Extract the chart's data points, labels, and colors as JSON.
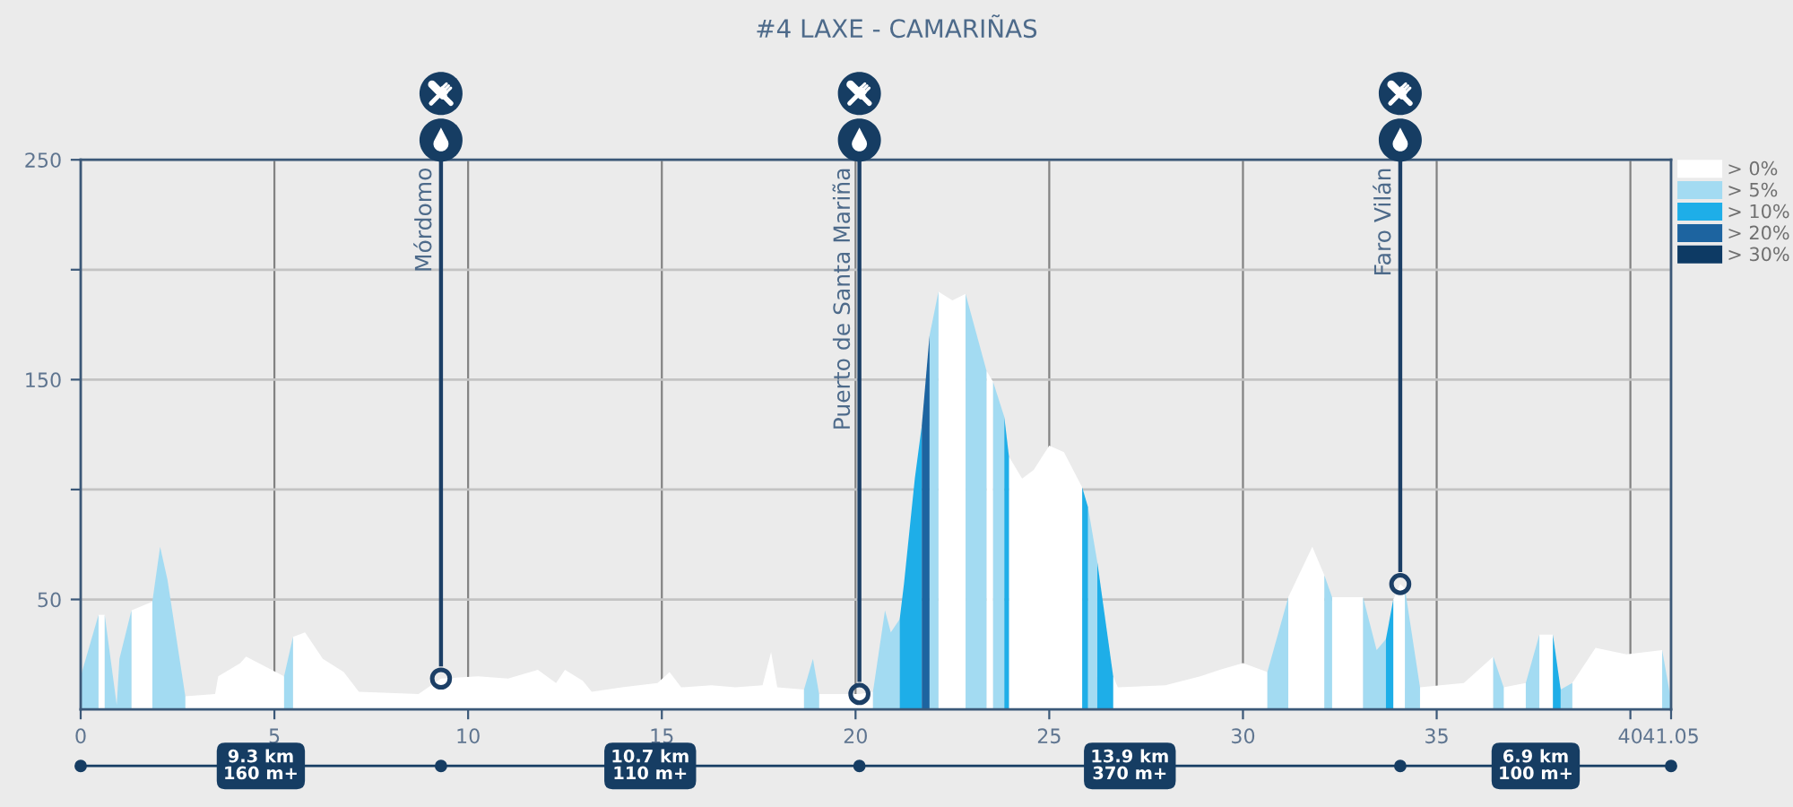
{
  "chart_data": {
    "type": "area",
    "title": "#4 LAXE - CAMARIÑAS",
    "x": [
      0,
      0.46,
      0.46,
      0.62,
      0.62,
      0.93,
      1.0,
      1.31,
      1.31,
      1.85,
      1.85,
      2.05,
      2.24,
      2.7,
      2.7,
      3.47,
      3.55,
      4.12,
      4.27,
      5.25,
      5.25,
      5.48,
      5.48,
      5.79,
      6.25,
      6.79,
      7.18,
      8.72,
      9.3,
      10.26,
      11.03,
      11.8,
      12.27,
      12.5,
      12.96,
      13.19,
      13.97,
      14.89,
      15.2,
      15.5,
      16.28,
      16.9,
      17.6,
      17.82,
      17.98,
      18.67,
      18.67,
      18.9,
      19.06,
      19.06,
      20.1,
      20.45,
      20.45,
      20.76,
      20.91,
      21.14,
      21.14,
      21.25,
      21.53,
      21.71,
      21.71,
      21.91,
      21.91,
      22.14,
      22.14,
      22.5,
      22.84,
      22.84,
      23.38,
      23.38,
      23.55,
      23.55,
      23.84,
      23.84,
      23.96,
      23.96,
      24.3,
      24.6,
      25.0,
      25.38,
      25.85,
      25.85,
      26.0,
      26.0,
      26.24,
      26.24,
      26.65,
      26.65,
      26.77,
      28.0,
      28.9,
      29.4,
      30.0,
      30.63,
      30.63,
      31.17,
      31.17,
      31.79,
      32.1,
      32.1,
      32.3,
      32.3,
      33.1,
      33.1,
      33.45,
      33.69,
      33.69,
      33.88,
      33.88,
      34.06,
      34.18,
      34.18,
      34.57,
      34.57,
      35.7,
      36.46,
      36.46,
      36.73,
      36.73,
      37.3,
      37.3,
      37.65,
      37.65,
      38.0,
      38.0,
      38.2,
      38.2,
      38.5,
      38.5,
      39.1,
      39.9,
      40.82,
      40.82,
      41.05
    ],
    "series": [
      {
        "name": "> 0%",
        "color": "#ffffff",
        "values": [
          null,
          null,
          43,
          43,
          null,
          null,
          null,
          null,
          45,
          49,
          null,
          null,
          null,
          null,
          6,
          7,
          15,
          21,
          24,
          15,
          null,
          null,
          33,
          35,
          23,
          17,
          8,
          7,
          14,
          15,
          14,
          18,
          12,
          18,
          13,
          8,
          10,
          12,
          17,
          10,
          11,
          10,
          11,
          26,
          10,
          9,
          null,
          null,
          null,
          7,
          7,
          8,
          null,
          null,
          null,
          null,
          null,
          null,
          null,
          null,
          null,
          null,
          null,
          null,
          190,
          186,
          189,
          null,
          null,
          154,
          149,
          null,
          null,
          null,
          null,
          115,
          105,
          109,
          120,
          117,
          101,
          null,
          null,
          null,
          null,
          null,
          null,
          15,
          10,
          11,
          15,
          18,
          21,
          17,
          null,
          null,
          51,
          74,
          61,
          null,
          null,
          51,
          51,
          null,
          null,
          null,
          null,
          null,
          50,
          57,
          55,
          null,
          null,
          10,
          12,
          24,
          null,
          null,
          10,
          12,
          null,
          null,
          34,
          34,
          null,
          null,
          null,
          null,
          12,
          28,
          25,
          27,
          null,
          null
        ]
      },
      {
        "name": "> 5%",
        "color": "#a3dbf2",
        "values": [
          15,
          43,
          null,
          null,
          43,
          2,
          23,
          45,
          null,
          null,
          49,
          74,
          59,
          6,
          null,
          null,
          null,
          null,
          null,
          null,
          15,
          33,
          null,
          null,
          null,
          null,
          null,
          null,
          null,
          null,
          null,
          null,
          null,
          null,
          null,
          null,
          null,
          null,
          null,
          null,
          null,
          null,
          null,
          null,
          null,
          null,
          9,
          23,
          7,
          null,
          null,
          null,
          8,
          45,
          35,
          41,
          null,
          null,
          null,
          null,
          null,
          null,
          170,
          190,
          null,
          null,
          null,
          189,
          154,
          null,
          null,
          149,
          133,
          null,
          null,
          null,
          null,
          null,
          null,
          null,
          null,
          null,
          null,
          92,
          67,
          null,
          null,
          null,
          null,
          null,
          null,
          null,
          null,
          null,
          17,
          51,
          null,
          null,
          null,
          61,
          51,
          null,
          null,
          51,
          27,
          32,
          null,
          null,
          null,
          null,
          null,
          55,
          10,
          null,
          null,
          null,
          24,
          10,
          null,
          null,
          12,
          34,
          null,
          null,
          null,
          null,
          9,
          12,
          null,
          null,
          null,
          null,
          27,
          4
        ]
      },
      {
        "name": "> 10%",
        "color": "#1eaee8",
        "values": [
          null,
          null,
          null,
          null,
          null,
          null,
          null,
          null,
          null,
          null,
          null,
          null,
          null,
          null,
          null,
          null,
          null,
          null,
          null,
          null,
          null,
          null,
          null,
          null,
          null,
          null,
          null,
          null,
          null,
          null,
          null,
          null,
          null,
          null,
          null,
          null,
          null,
          null,
          null,
          null,
          null,
          null,
          null,
          null,
          null,
          null,
          null,
          null,
          null,
          null,
          null,
          null,
          null,
          null,
          null,
          null,
          41,
          57,
          105,
          129,
          null,
          null,
          null,
          null,
          null,
          null,
          null,
          null,
          null,
          null,
          null,
          null,
          null,
          133,
          115,
          null,
          null,
          null,
          null,
          null,
          null,
          101,
          92,
          null,
          null,
          67,
          15,
          null,
          null,
          null,
          null,
          null,
          null,
          null,
          null,
          null,
          null,
          null,
          null,
          null,
          null,
          null,
          null,
          null,
          null,
          null,
          32,
          50,
          null,
          null,
          null,
          null,
          null,
          null,
          null,
          null,
          null,
          null,
          null,
          null,
          null,
          null,
          null,
          null,
          34,
          9,
          null,
          null,
          null,
          null,
          null,
          null,
          null,
          null
        ]
      },
      {
        "name": "> 20%",
        "color": "#1d64a0",
        "values": [
          null,
          null,
          null,
          null,
          null,
          null,
          null,
          null,
          null,
          null,
          null,
          null,
          null,
          null,
          null,
          null,
          null,
          null,
          null,
          null,
          null,
          null,
          null,
          null,
          null,
          null,
          null,
          null,
          null,
          null,
          null,
          null,
          null,
          null,
          null,
          null,
          null,
          null,
          null,
          null,
          null,
          null,
          null,
          null,
          null,
          null,
          null,
          null,
          null,
          null,
          null,
          null,
          null,
          null,
          null,
          null,
          null,
          null,
          null,
          null,
          129,
          170,
          null,
          null,
          null,
          null,
          null,
          null,
          null,
          null,
          null,
          null,
          null,
          null,
          null,
          null,
          null,
          null,
          null,
          null,
          null,
          null,
          null,
          null,
          null,
          null,
          null,
          null,
          null,
          null,
          null,
          null,
          null,
          null,
          null,
          null,
          null,
          null,
          null,
          null,
          null,
          null,
          null,
          null,
          null,
          null,
          null,
          null,
          null,
          null,
          null,
          null,
          null,
          null,
          null,
          null,
          null,
          null,
          null,
          null,
          null,
          null,
          null,
          null,
          null,
          null,
          null,
          null,
          null,
          null,
          null,
          null,
          null,
          null
        ]
      },
      {
        "name": "> 30%",
        "color": "#0d3a64",
        "values": [
          null,
          null,
          null,
          null,
          null,
          null,
          null,
          null,
          null,
          null,
          null,
          null,
          null,
          null,
          null,
          null,
          null,
          null,
          null,
          null,
          null,
          null,
          null,
          null,
          null,
          null,
          null,
          null,
          null,
          null,
          null,
          null,
          null,
          null,
          null,
          null,
          null,
          null,
          null,
          null,
          null,
          null,
          null,
          null,
          null,
          null,
          null,
          null,
          null,
          null,
          null,
          null,
          null,
          null,
          null,
          null,
          null,
          null,
          null,
          null,
          null,
          null,
          null,
          null,
          null,
          null,
          null,
          null,
          null,
          null,
          null,
          null,
          null,
          null,
          null,
          null,
          null,
          null,
          null,
          null,
          null,
          null,
          null,
          null,
          null,
          null,
          null,
          null,
          null,
          null,
          null,
          null,
          null,
          null,
          null,
          null,
          null,
          null,
          null,
          null,
          null,
          null,
          null,
          null,
          null,
          null,
          null,
          null,
          null,
          null,
          null,
          null,
          null,
          null,
          null,
          null,
          null,
          null,
          null,
          null,
          null,
          null,
          null,
          null,
          null,
          null,
          null,
          null,
          null,
          null,
          null,
          null,
          null,
          null
        ]
      },
      {
        "type": "scatter",
        "color": "#1c3f66",
        "marker": "circle",
        "x": [
          9.3,
          20.1,
          34.06
        ],
        "values": [
          14,
          7,
          57
        ]
      }
    ],
    "xlim": [
      0,
      41.05
    ],
    "xticks": [
      0,
      5,
      10,
      15,
      20,
      25,
      30,
      35,
      40,
      41.05
    ],
    "ylim": [
      0,
      250
    ],
    "yticks": [
      50,
      {
        "value": 100,
        "label": null
      },
      150,
      {
        "value": 200,
        "label": null
      },
      250
    ],
    "grid": true,
    "legend": "top right",
    "ref_lines": [
      {
        "axis": "x",
        "value": 9.3,
        "label": "Mórdomo",
        "color": "#1c3f66"
      },
      {
        "axis": "x",
        "value": 20.1,
        "label": "Puerto de Santa Mariña",
        "color": "#1c3f66"
      },
      {
        "axis": "x",
        "value": 34.06,
        "label": "Faro Vilán",
        "color": "#1c3f66"
      }
    ],
    "annotations": [
      "9.3 km\n160 m+",
      "10.7 km\n110 m+",
      "13.9 km\n370 m+",
      "6.9 km\n100 m+"
    ]
  }
}
